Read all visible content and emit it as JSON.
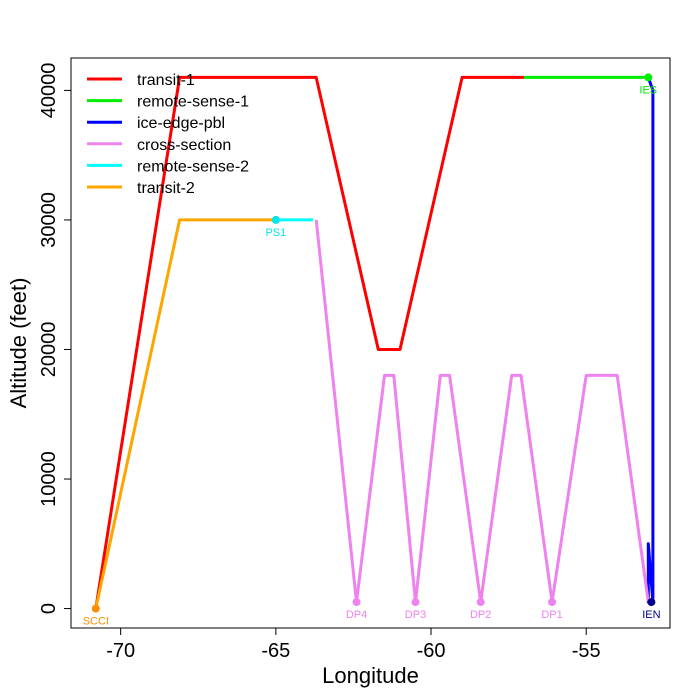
{
  "chart_data": {
    "type": "line",
    "title": "",
    "xlabel": "Longitude",
    "ylabel": "Altitude (feet)",
    "xlim": [
      -71.6,
      -52.3
    ],
    "ylim": [
      -1500,
      42500
    ],
    "xticks": [
      -70,
      -65,
      -60,
      -55
    ],
    "yticks": [
      0,
      10000,
      20000,
      30000,
      40000
    ],
    "x_tick_labels": [
      "-70",
      "-65",
      "-60",
      "-55"
    ],
    "y_tick_labels": [
      "0",
      "10000",
      "20000",
      "30000",
      "40000"
    ],
    "legend_position": "top-left",
    "series": [
      {
        "name": "transit-1",
        "color": "#ff0000",
        "points": [
          [
            -70.8,
            0
          ],
          [
            -68.1,
            41000
          ],
          [
            -63.7,
            41000
          ],
          [
            -61.7,
            20000
          ],
          [
            -61.0,
            20000
          ],
          [
            -59.0,
            41000
          ],
          [
            -57.0,
            41000
          ]
        ]
      },
      {
        "name": "remote-sense-1",
        "color": "#00ee00",
        "points": [
          [
            -57.0,
            41000
          ],
          [
            -53.0,
            41000
          ]
        ]
      },
      {
        "name": "ice-edge-pbl",
        "color": "#0000ff",
        "points": [
          [
            -53.0,
            41000
          ],
          [
            -52.85,
            40000
          ],
          [
            -52.85,
            500
          ],
          [
            -53.0,
            5000
          ],
          [
            -53.0,
            500
          ],
          [
            -52.9,
            500
          ]
        ]
      },
      {
        "name": "cross-section",
        "color": "#ee82ee",
        "points": [
          [
            -63.7,
            30000
          ],
          [
            -62.4,
            500
          ],
          [
            -61.5,
            18000
          ],
          [
            -61.2,
            18000
          ],
          [
            -60.5,
            500
          ],
          [
            -59.7,
            18000
          ],
          [
            -59.4,
            18000
          ],
          [
            -58.4,
            500
          ],
          [
            -57.4,
            18000
          ],
          [
            -57.1,
            18000
          ],
          [
            -56.1,
            500
          ],
          [
            -55.0,
            18000
          ],
          [
            -54.0,
            18000
          ],
          [
            -53.0,
            500
          ]
        ]
      },
      {
        "name": "remote-sense-2",
        "color": "#00ffff",
        "points": [
          [
            -65.0,
            30000
          ],
          [
            -63.8,
            30000
          ]
        ]
      },
      {
        "name": "transit-2",
        "color": "#ffa500",
        "points": [
          [
            -70.8,
            0
          ],
          [
            -68.1,
            30000
          ],
          [
            -65.0,
            30000
          ]
        ]
      }
    ],
    "annotations": [
      {
        "label": "SCCI",
        "x": -70.8,
        "y": 0,
        "color": "#ff8c00"
      },
      {
        "label": "PS1",
        "x": -65.0,
        "y": 30000,
        "color": "#00e5ee"
      },
      {
        "label": "IES",
        "x": -53.0,
        "y": 41000,
        "color": "#00ee00"
      },
      {
        "label": "IEN",
        "x": -52.9,
        "y": 500,
        "color": "#00008b"
      },
      {
        "label": "DP4",
        "x": -62.4,
        "y": 500,
        "color": "#ee82ee"
      },
      {
        "label": "DP3",
        "x": -60.5,
        "y": 500,
        "color": "#ee82ee"
      },
      {
        "label": "DP2",
        "x": -58.4,
        "y": 500,
        "color": "#ee82ee"
      },
      {
        "label": "DP1",
        "x": -56.1,
        "y": 500,
        "color": "#ee82ee"
      }
    ]
  }
}
